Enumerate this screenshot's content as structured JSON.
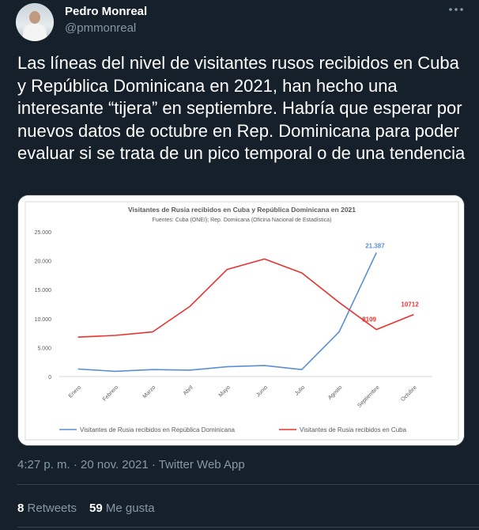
{
  "tweet": {
    "author_name": "Pedro Monreal",
    "author_handle": "@pmmonreal",
    "more_icon": "more-icon",
    "text": "Las líneas del nivel de visitantes rusos recibidos en Cuba y República Dominicana en 2021, han hecho una interesante “tijera” en septiembre. Habría que esperar por nuevos datos de octubre en Rep. Dominicana para poder evaluar si se trata de un pico temporal o de una tendencia",
    "timestamp": "4:27 p. m. · 20 nov. 2021 · Twitter Web App",
    "retweets_count": "8",
    "retweets_label": "Retweets",
    "likes_count": "59",
    "likes_label": "Me gusta"
  },
  "chart_data": {
    "type": "line",
    "title": "Visitantes de Rusia recibidos en Cuba y República Dominicana en 2021",
    "subtitle": "Fuentes: Cuba (ONEI); Rep. Domiicana (Oficina Nacional de Estadística)",
    "categories": [
      "Enero",
      "Febrero",
      "Marzo",
      "Abril",
      "Mayo",
      "Junio",
      "Julio",
      "Agosto",
      "Septiembre",
      "Octubre"
    ],
    "y_ticks": [
      "25.000",
      "20.000",
      "15.000",
      "10.000",
      "5.000",
      "0"
    ],
    "ylim": [
      0,
      25000
    ],
    "grid": false,
    "legend_position": "bottom",
    "series": [
      {
        "name": "Visitantes de Rusia recibidos en República Dominicana",
        "color": "#5b8fd4",
        "values": [
          1300,
          900,
          1200,
          1100,
          1700,
          1900,
          1200,
          7700,
          21387,
          null
        ],
        "data_labels": {
          "8": "21.387"
        }
      },
      {
        "name": "Visitantes de Rusia recibidos en Cuba",
        "color": "#e8322d",
        "values": [
          6800,
          7100,
          7700,
          12100,
          18500,
          20300,
          17900,
          12800,
          8109,
          10712
        ],
        "data_labels": {
          "8": "8109",
          "9": "10712"
        }
      }
    ]
  }
}
